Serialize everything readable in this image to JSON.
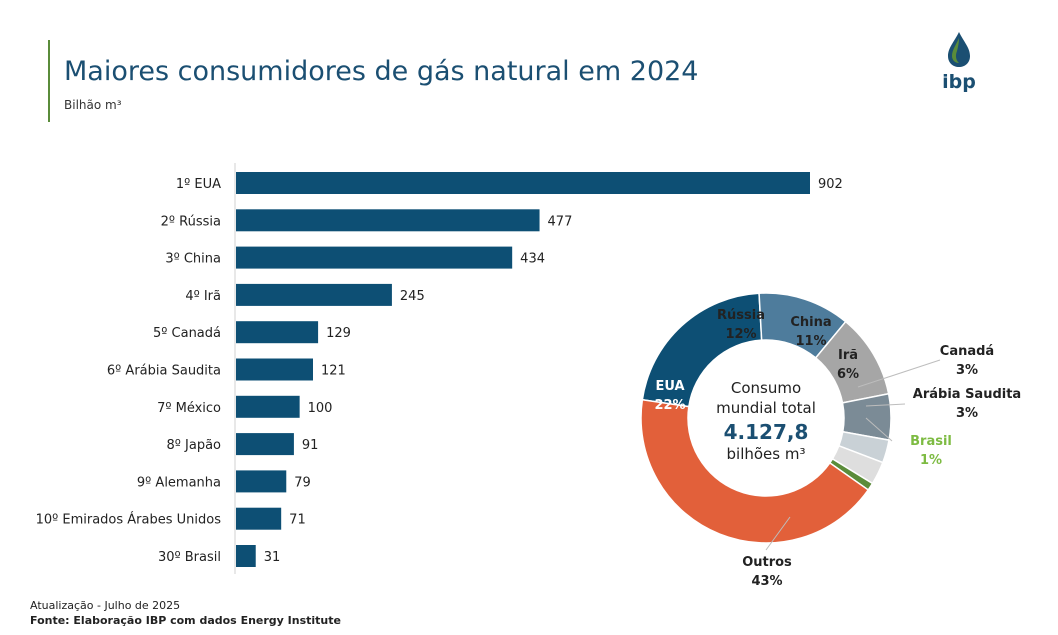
{
  "header": {
    "title": "Maiores consumidores de gás natural em 2024",
    "subtitle": "Bilhão m³",
    "logo_text": "ibp"
  },
  "chart_data": [
    {
      "type": "bar",
      "orientation": "horizontal",
      "categories": [
        "1º EUA",
        "2º Rússia",
        "3º China",
        "4º Irã",
        "5º Canadá",
        "6º Arábia Saudita",
        "7º México",
        "8º Japão",
        "9º Alemanha",
        "10º Emirados Árabes Unidos",
        "30º Brasil"
      ],
      "values": [
        902,
        477,
        434,
        245,
        129,
        121,
        100,
        91,
        79,
        71,
        31
      ],
      "unit": "Bilhão m³",
      "bar_color": "#0d4f74",
      "xlim": [
        0,
        1000
      ]
    },
    {
      "type": "pie",
      "variant": "donut",
      "slices": [
        {
          "label": "EUA",
          "pct": "22%",
          "value": 22,
          "color": "#0d4f74"
        },
        {
          "label": "Rússia",
          "pct": "12%",
          "value": 12,
          "color": "#4e7c9c"
        },
        {
          "label": "China",
          "pct": "11%",
          "value": 11,
          "color": "#a6a6a6"
        },
        {
          "label": "Irã",
          "pct": "6%",
          "value": 6,
          "color": "#7b8b96"
        },
        {
          "label": "Canadá",
          "pct": "3%",
          "value": 3,
          "color": "#c9d1d6"
        },
        {
          "label": "Arábia Saudita",
          "pct": "3%",
          "value": 3,
          "color": "#dedede"
        },
        {
          "label": "Brasil",
          "pct": "1%",
          "value": 1,
          "color": "#5a8c3a"
        },
        {
          "label": "Outros",
          "pct": "43%",
          "value": 43,
          "color": "#e2603a"
        }
      ],
      "center_label_line1": "Consumo",
      "center_label_line2": "mundial total",
      "center_value": "4.127,8",
      "center_unit": "bilhões m³",
      "brasil_label_color": "#7dbb42"
    }
  ],
  "footer": {
    "update": "Atualização - Julho de 2025",
    "source": "Fonte: Elaboração IBP com dados Energy Institute"
  }
}
